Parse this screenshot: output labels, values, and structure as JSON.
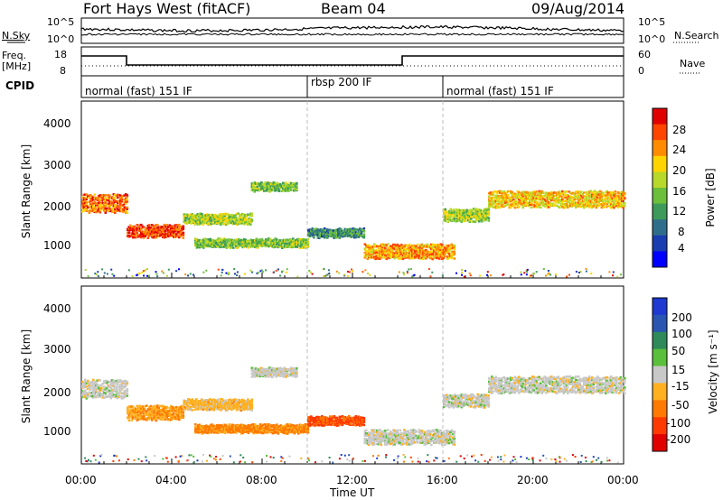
{
  "header": {
    "station": "Fort Hays West (fitACF)",
    "beam": "Beam 04",
    "date": "09/Aug/2014"
  },
  "noise_panel": {
    "left_label": "N.Sky",
    "left_ticks": [
      "10^5",
      "10^0"
    ],
    "right_ticks": [
      "10^5",
      "10^0"
    ],
    "right_label": "N.Search"
  },
  "freq_panel": {
    "left_label_1": "Freq.",
    "left_label_2": "[MHz]",
    "left_ticks": [
      "18",
      "8"
    ],
    "right_ticks": [
      "60",
      "0"
    ],
    "right_label": "Nave"
  },
  "cpid_panel": {
    "label": "CPID",
    "segments": [
      {
        "label": "normal (fast) 151 IF",
        "start_hour": 0,
        "end_hour": 10
      },
      {
        "label": "rbsp 200 IF",
        "start_hour": 10,
        "end_hour": 16
      },
      {
        "label": "normal (fast) 151 IF",
        "start_hour": 16,
        "end_hour": 24
      }
    ]
  },
  "power_panel": {
    "ylabel": "Slant Range [km]",
    "yticks": [
      "4000",
      "3000",
      "2000",
      "1000"
    ],
    "colorbar_label": "Power [dB]",
    "colorbar_ticks": [
      "28",
      "24",
      "20",
      "16",
      "12",
      "8",
      "4"
    ],
    "colors": [
      "#0000ff",
      "#1a3db0",
      "#2f6e8a",
      "#3d9a5a",
      "#6bbf3a",
      "#b8d82a",
      "#ffd400",
      "#ff8c00",
      "#ff4500",
      "#e00000"
    ]
  },
  "velocity_panel": {
    "ylabel": "Slant Range [km]",
    "yticks": [
      "4000",
      "3000",
      "2000",
      "1000"
    ],
    "colorbar_label": "Velocity [m s⁻¹]",
    "colorbar_ticks": [
      "200",
      "100",
      "50",
      "15",
      "-15",
      "-50",
      "-100",
      "-200"
    ],
    "colors": [
      "#1e3ad0",
      "#2a55b0",
      "#2e8a5a",
      "#5abf3a",
      "#c8c8c8",
      "#ffb020",
      "#ff7a00",
      "#ff3a00",
      "#e00000"
    ]
  },
  "xaxis": {
    "label": "Time UT",
    "ticks": [
      "00:00",
      "04:00",
      "08:00",
      "12:00",
      "16:00",
      "20:00",
      "00:00"
    ]
  },
  "chart_data": [
    {
      "type": "heatmap",
      "title": "Power [dB]",
      "xlabel": "Time UT",
      "ylabel": "Slant Range [km]",
      "xlim": [
        0,
        24
      ],
      "ylim": [
        200,
        4600
      ],
      "clim": [
        0,
        30
      ],
      "bands": [
        {
          "x": [
            0.0,
            2.0
          ],
          "y_center": 2100,
          "thickness": 450,
          "value": 24
        },
        {
          "x": [
            2.0,
            4.5
          ],
          "y_center": 1400,
          "thickness": 300,
          "value": 26
        },
        {
          "x": [
            4.5,
            7.5
          ],
          "y_center": 1700,
          "thickness": 250,
          "value": 16
        },
        {
          "x": [
            7.5,
            9.5
          ],
          "y_center": 2500,
          "thickness": 200,
          "value": 14
        },
        {
          "x": [
            5.0,
            10.0
          ],
          "y_center": 1100,
          "thickness": 200,
          "value": 14
        },
        {
          "x": [
            10.0,
            12.5
          ],
          "y_center": 1350,
          "thickness": 200,
          "value": 10
        },
        {
          "x": [
            12.5,
            16.5
          ],
          "y_center": 900,
          "thickness": 350,
          "value": 22
        },
        {
          "x": [
            16.0,
            18.0
          ],
          "y_center": 1800,
          "thickness": 300,
          "value": 16
        },
        {
          "x": [
            18.0,
            24.0
          ],
          "y_center": 2200,
          "thickness": 400,
          "value": 20
        }
      ]
    },
    {
      "type": "heatmap",
      "title": "Velocity [m s⁻¹]",
      "xlabel": "Time UT",
      "ylabel": "Slant Range [km]",
      "xlim": [
        0,
        24
      ],
      "ylim": [
        200,
        4600
      ],
      "clim": [
        -200,
        200
      ],
      "bands": [
        {
          "x": [
            0.0,
            2.0
          ],
          "y_center": 2100,
          "thickness": 450,
          "value": 0
        },
        {
          "x": [
            2.0,
            4.5
          ],
          "y_center": 1500,
          "thickness": 350,
          "value": -60
        },
        {
          "x": [
            4.5,
            7.5
          ],
          "y_center": 1700,
          "thickness": 250,
          "value": -40
        },
        {
          "x": [
            7.5,
            9.5
          ],
          "y_center": 2500,
          "thickness": 200,
          "value": 0
        },
        {
          "x": [
            5.0,
            10.0
          ],
          "y_center": 1100,
          "thickness": 200,
          "value": -80
        },
        {
          "x": [
            10.0,
            12.5
          ],
          "y_center": 1300,
          "thickness": 200,
          "value": -120
        },
        {
          "x": [
            12.5,
            16.5
          ],
          "y_center": 900,
          "thickness": 350,
          "value": 0
        },
        {
          "x": [
            16.0,
            18.0
          ],
          "y_center": 1800,
          "thickness": 300,
          "value": 0
        },
        {
          "x": [
            18.0,
            24.0
          ],
          "y_center": 2200,
          "thickness": 400,
          "value": 0
        }
      ]
    }
  ]
}
